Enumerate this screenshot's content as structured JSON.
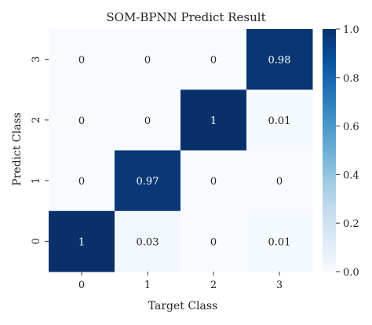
{
  "chart_data": {
    "type": "heatmap",
    "title": "SOM-BPNN Predict Result",
    "xlabel": "Target Class",
    "ylabel": "Predict Class",
    "x_categories": [
      "0",
      "1",
      "2",
      "3"
    ],
    "y_categories": [
      "3",
      "2",
      "1",
      "0"
    ],
    "values": [
      [
        0,
        0,
        0,
        0.98
      ],
      [
        0,
        0,
        1,
        0.01
      ],
      [
        0,
        0.97,
        0,
        0
      ],
      [
        1,
        0.03,
        0,
        0.01
      ]
    ],
    "cell_labels": [
      [
        "0",
        "0",
        "0",
        "0.98"
      ],
      [
        "0",
        "0",
        "1",
        "0.01"
      ],
      [
        "0",
        "0.97",
        "0",
        "0"
      ],
      [
        "1",
        "0.03",
        "0",
        "0.01"
      ]
    ],
    "colorbar": {
      "min": 0.0,
      "max": 1.0,
      "ticks": [
        "0.0",
        "0.2",
        "0.4",
        "0.6",
        "0.8",
        "1.0"
      ],
      "colormap": "Blues",
      "low_color": "#f7fbff",
      "high_color": "#08306b"
    }
  }
}
